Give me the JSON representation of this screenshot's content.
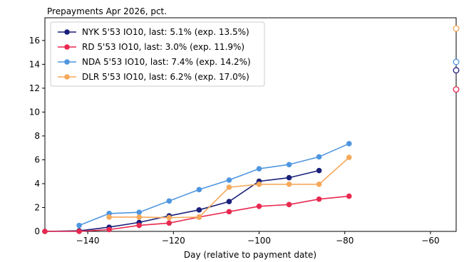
{
  "chart_data": {
    "type": "line",
    "title": "Prepayments Apr 2026, pct.",
    "xlabel": "Day (relative to payment date)",
    "ylabel": "",
    "xlim": [
      -150,
      -54
    ],
    "ylim": [
      0,
      17.9
    ],
    "xticks": [
      -140,
      -120,
      -100,
      -80,
      -60
    ],
    "xtick_labels": [
      "−140",
      "−120",
      "−100",
      "−80",
      "−60"
    ],
    "yticks": [
      0,
      2,
      4,
      6,
      8,
      10,
      12,
      14,
      16
    ],
    "ytick_labels": [
      "0",
      "2",
      "4",
      "6",
      "8",
      "10",
      "12",
      "14",
      "16"
    ],
    "grid": false,
    "legend_position": "top-left",
    "series": [
      {
        "name": "NYK 5'53 IO10, last: 5.1% (exp. 13.5%)",
        "color": "#1a1f7a",
        "x": [
          -150,
          -142,
          -135,
          -128,
          -121,
          -114,
          -107,
          -100,
          -93,
          -86
        ],
        "y": [
          0.0,
          0.05,
          0.35,
          0.75,
          1.3,
          1.8,
          2.5,
          4.2,
          4.5,
          5.1
        ],
        "expected": 13.5
      },
      {
        "name": "RD 5'53 IO10, last: 3.0% (exp. 11.9%)",
        "color": "#e8294f",
        "x": [
          -150,
          -142,
          -135,
          -128,
          -121,
          -114,
          -107,
          -100,
          -93,
          -86,
          -79
        ],
        "y": [
          0.0,
          0.0,
          0.15,
          0.5,
          0.7,
          1.2,
          1.65,
          2.1,
          2.25,
          2.7,
          2.95
        ],
        "expected": 11.9
      },
      {
        "name": "NDA 5'53 IO10, last: 7.4% (exp. 14.2%)",
        "color": "#4f96e0",
        "x": [
          -142,
          -135,
          -128,
          -121,
          -114,
          -107,
          -100,
          -93,
          -86,
          -79
        ],
        "y": [
          0.5,
          1.5,
          1.6,
          2.55,
          3.5,
          4.3,
          5.25,
          5.6,
          6.25,
          7.35
        ],
        "expected": 14.2
      },
      {
        "name": "DLR 5'53 IO10, last: 6.2% (exp. 17.0%)",
        "color": "#f5a95a",
        "x": [
          -135,
          -128,
          -121,
          -114,
          -107,
          -100,
          -93,
          -86,
          -79
        ],
        "y": [
          1.2,
          1.2,
          1.15,
          1.2,
          3.7,
          3.95,
          3.95,
          3.95,
          6.2
        ],
        "expected": 17.0
      }
    ],
    "expected_marker_x": -54
  }
}
